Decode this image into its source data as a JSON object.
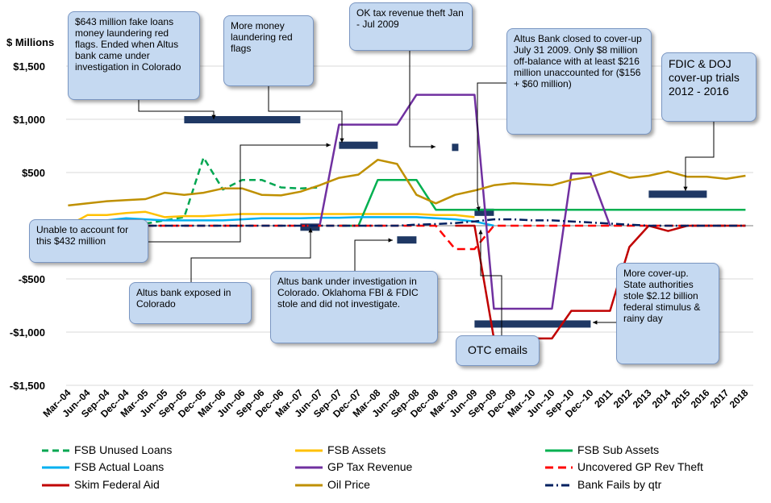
{
  "chart_data": {
    "type": "line",
    "yunit_label": "$ Millions",
    "ylim": [
      -1500,
      1500
    ],
    "y_ticks": [
      1500,
      1000,
      500,
      0,
      -500,
      -1000,
      -1500
    ],
    "y_tick_labels": [
      "$1,500",
      "$1,000",
      "$500",
      "",
      "-$500",
      "-$1,000",
      "-$1,500"
    ],
    "categories": [
      "Mar--04",
      "Jun--04",
      "Sep--04",
      "Dec--04",
      "Mar--05",
      "Jun--05",
      "Sep--05",
      "Dec--05",
      "Mar--06",
      "Jun--06",
      "Sep--06",
      "Dec--06",
      "Mar--07",
      "Jun--07",
      "Sep--07",
      "Dec--07",
      "Mar--08",
      "Jun--08",
      "Sep--08",
      "Dec--08",
      "Mar--09",
      "Jun--09",
      "Sep--09",
      "Dec--09",
      "Mar--10",
      "Jun--10",
      "Sep--10",
      "Dec--10",
      "2011",
      "2012",
      "2013",
      "2014",
      "2015",
      "2016",
      "2017",
      "2018"
    ],
    "series": [
      {
        "name": "FSB Unused Loans",
        "color": "#00a651",
        "dash": "8,5",
        "width": 2.5,
        "values": [
          null,
          null,
          null,
          null,
          20,
          50,
          80,
          640,
          340,
          430,
          430,
          360,
          350,
          360,
          null,
          null,
          null,
          null,
          null,
          null,
          null,
          null,
          null,
          null,
          null,
          null,
          null,
          null,
          null,
          null,
          null,
          null,
          null,
          null,
          null,
          null
        ]
      },
      {
        "name": "FSB Assets",
        "color": "#ffc000",
        "dash": "",
        "width": 2.5,
        "values": [
          0,
          100,
          100,
          120,
          130,
          80,
          90,
          90,
          100,
          110,
          110,
          110,
          110,
          110,
          110,
          110,
          110,
          110,
          110,
          100,
          100,
          80,
          null,
          null,
          null,
          null,
          null,
          null,
          null,
          null,
          null,
          null,
          null,
          null,
          null,
          null
        ]
      },
      {
        "name": "FSB Sub Assets",
        "color": "#00b050",
        "dash": "",
        "width": 2.5,
        "values": [
          null,
          null,
          null,
          null,
          null,
          null,
          null,
          null,
          null,
          null,
          null,
          null,
          null,
          null,
          0,
          0,
          430,
          430,
          430,
          150,
          150,
          150,
          150,
          150,
          150,
          150,
          150,
          150,
          150,
          150,
          150,
          150,
          150,
          150,
          150,
          150
        ]
      },
      {
        "name": "FSB Actual Loans",
        "color": "#00b0f0",
        "dash": "",
        "width": 2.5,
        "values": [
          0,
          40,
          50,
          70,
          60,
          50,
          50,
          50,
          50,
          60,
          70,
          70,
          70,
          75,
          75,
          80,
          80,
          80,
          80,
          70,
          60,
          40,
          0,
          null,
          null,
          null,
          null,
          null,
          null,
          null,
          null,
          null,
          null,
          null,
          null,
          null
        ]
      },
      {
        "name": "GP Tax Revenue",
        "color": "#7030a0",
        "dash": "",
        "width": 2.5,
        "values": [
          null,
          null,
          null,
          null,
          null,
          null,
          null,
          null,
          null,
          null,
          null,
          null,
          null,
          0,
          950,
          950,
          950,
          950,
          1230,
          1230,
          1230,
          1230,
          -780,
          -780,
          -780,
          -780,
          490,
          490,
          0,
          null,
          null,
          null,
          null,
          null,
          null,
          null
        ]
      },
      {
        "name": "Uncovered GP Rev Theft",
        "color": "#ff0000",
        "dash": "10,6",
        "width": 2.5,
        "values": [
          0,
          0,
          0,
          0,
          0,
          0,
          0,
          0,
          0,
          0,
          0,
          0,
          0,
          0,
          0,
          0,
          0,
          0,
          0,
          0,
          -220,
          -220,
          0,
          0,
          0,
          0,
          0,
          0,
          0,
          0,
          0,
          0,
          0,
          0,
          0,
          0
        ]
      },
      {
        "name": "Skim Federal Aid",
        "color": "#c00000",
        "dash": "",
        "width": 2.5,
        "values": [
          null,
          null,
          null,
          null,
          null,
          null,
          null,
          null,
          null,
          null,
          null,
          null,
          null,
          null,
          null,
          null,
          null,
          null,
          null,
          null,
          0,
          0,
          -1060,
          -1060,
          -1060,
          -1060,
          -800,
          -800,
          -800,
          -200,
          0,
          -50,
          0,
          0,
          0,
          0
        ]
      },
      {
        "name": "Oil Price",
        "color": "#bf9000",
        "dash": "",
        "width": 2.5,
        "values": [
          190,
          210,
          230,
          240,
          250,
          310,
          290,
          310,
          350,
          350,
          290,
          285,
          320,
          380,
          450,
          480,
          620,
          580,
          290,
          210,
          290,
          330,
          380,
          400,
          390,
          380,
          430,
          460,
          510,
          450,
          470,
          510,
          460,
          460,
          440,
          470
        ]
      },
      {
        "name": "Bank Fails by qtr",
        "color": "#002060",
        "dash": "10,4,2,4",
        "width": 2.5,
        "values": [
          0,
          0,
          0,
          0,
          0,
          0,
          0,
          0,
          0,
          0,
          0,
          0,
          0,
          0,
          0,
          0,
          0,
          0,
          10,
          15,
          25,
          40,
          60,
          60,
          50,
          50,
          40,
          30,
          20,
          10,
          0,
          0,
          0,
          0,
          0,
          0
        ]
      }
    ],
    "bars": [
      {
        "x_from": "Sep--05",
        "x_to": "Mar--07",
        "y": 1000
      },
      {
        "x_from": "Sep--07",
        "x_to": "Mar--08",
        "y": 760
      },
      {
        "x_from": "Mar--09",
        "x_to": "Mar--09",
        "y": 740
      },
      {
        "x_from": "Mar--07",
        "x_to": "Jun--07",
        "y": -10
      },
      {
        "x_from": "Jun--08",
        "x_to": "Sep--08",
        "y": -130
      },
      {
        "x_from": "Jun--09",
        "x_to": "Sep--09",
        "y": 130
      },
      {
        "x_from": "Jun--09",
        "x_to": "Dec--10",
        "y": -920
      },
      {
        "x_from": "2013",
        "x_to": "2016",
        "y": 300
      }
    ],
    "annotations": [
      "$643 million fake loans money laundering red flags. Ended when Altus bank came under investigation  in Colorado",
      "More money laundering red flags",
      "OK tax revenue  theft Jan - Jul 2009",
      "Altus Bank closed to cover-up  July 31 2009. Only $8 million off-balance with at least $216 million unaccounted for ($156 + $60 million)",
      "FDIC & DOJ cover-up trials 2012 - 2016",
      "Unable to account for this $432 million",
      "Altus bank exposed in Colorado",
      "Altus bank under investigation in Colorado. Oklahoma FBI & FDIC stole and did not investigate.",
      "OTC emails",
      "More cover-up. State authorities stole $2.12 billion federal stimulus & rainy day"
    ]
  },
  "legend": {
    "items": [
      {
        "label": "FSB Unused Loans",
        "color": "#00a651",
        "dash": "8,5"
      },
      {
        "label": "FSB Assets",
        "color": "#ffc000",
        "dash": ""
      },
      {
        "label": "FSB Sub Assets",
        "color": "#00b050",
        "dash": ""
      },
      {
        "label": "FSB Actual Loans",
        "color": "#00b0f0",
        "dash": ""
      },
      {
        "label": "GP Tax Revenue",
        "color": "#7030a0",
        "dash": ""
      },
      {
        "label": "Uncovered GP Rev Theft",
        "color": "#ff0000",
        "dash": "10,6"
      },
      {
        "label": "Skim Federal Aid",
        "color": "#c00000",
        "dash": ""
      },
      {
        "label": "Oil Price",
        "color": "#bf9000",
        "dash": ""
      },
      {
        "label": "Bank Fails by qtr",
        "color": "#002060",
        "dash": "10,4,2,4"
      }
    ]
  }
}
